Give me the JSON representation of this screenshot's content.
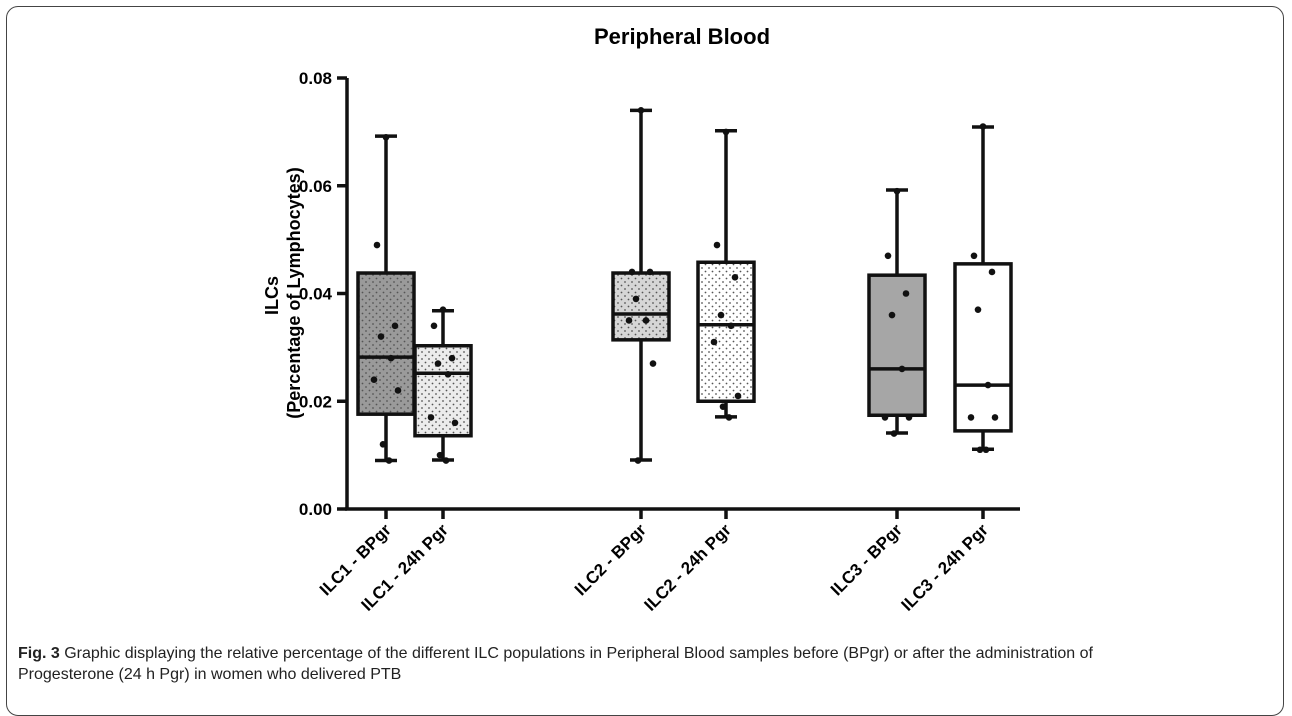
{
  "chart_data": {
    "type": "box",
    "title": "Peripheral Blood",
    "ylabel": [
      "ILCs",
      "(Percentage of Lymphocytes)"
    ],
    "categories": [
      "ILC1 - BPgr",
      "ILC1 - 24h Pgr",
      "ILC2 - BPgr",
      "ILC2 - 24h Pgr",
      "ILC3 - BPgr",
      "ILC3 - 24h Pgr"
    ],
    "ylim": [
      0,
      0.08
    ],
    "yticks": [
      {
        "value": 0,
        "label": "0.00"
      },
      {
        "value": 0.02,
        "label": "0.02"
      },
      {
        "value": 0.04,
        "label": "0.04"
      },
      {
        "value": 0.06,
        "label": "0.06"
      },
      {
        "value": 0.08,
        "label": "0.08"
      }
    ],
    "boxes": [
      {
        "min": 0.009,
        "q1": 0.0176,
        "median": 0.0282,
        "q3": 0.0438,
        "max": 0.0692,
        "color": "#9a9a9a",
        "pattern": "dots",
        "points": [
          0.069,
          0.049,
          0.034,
          0.032,
          0.028,
          0.024,
          0.022,
          0.012,
          0.009
        ]
      },
      {
        "min": 0.0091,
        "q1": 0.0136,
        "median": 0.0252,
        "q3": 0.0303,
        "max": 0.0368,
        "color": "#ececec",
        "pattern": "dots",
        "points": [
          0.037,
          0.034,
          0.028,
          0.027,
          0.025,
          0.017,
          0.016,
          0.01,
          0.009
        ]
      },
      {
        "min": 0.0091,
        "q1": 0.0314,
        "median": 0.0362,
        "q3": 0.0438,
        "max": 0.074,
        "color": "#d6d6d6",
        "pattern": "dots",
        "points": [
          0.074,
          0.044,
          0.044,
          0.039,
          0.035,
          0.035,
          0.027,
          0.009
        ]
      },
      {
        "min": 0.0171,
        "q1": 0.02,
        "median": 0.0342,
        "q3": 0.0458,
        "max": 0.0702,
        "color": "#ffffff",
        "pattern": "dots",
        "points": [
          0.07,
          0.049,
          0.043,
          0.036,
          0.034,
          0.031,
          0.021,
          0.019,
          0.017
        ]
      },
      {
        "min": 0.0141,
        "q1": 0.0174,
        "median": 0.026,
        "q3": 0.0434,
        "max": 0.0592,
        "color": "#a6a6a6",
        "pattern": "none",
        "points": [
          0.059,
          0.047,
          0.04,
          0.036,
          0.026,
          0.017,
          0.017,
          0.014
        ]
      },
      {
        "min": 0.0111,
        "q1": 0.0145,
        "median": 0.023,
        "q3": 0.0455,
        "max": 0.0709,
        "color": "#ffffff",
        "pattern": "none",
        "points": [
          0.071,
          0.047,
          0.044,
          0.037,
          0.023,
          0.017,
          0.017,
          0.011,
          0.011
        ]
      }
    ]
  },
  "caption": {
    "label": "Fig. 3",
    "text": "Graphic displaying the relative percentage of the different ILC populations in Peripheral Blood samples before (BPgr) or after the administration of Progesterone (24 h Pgr) in women who delivered PTB"
  }
}
